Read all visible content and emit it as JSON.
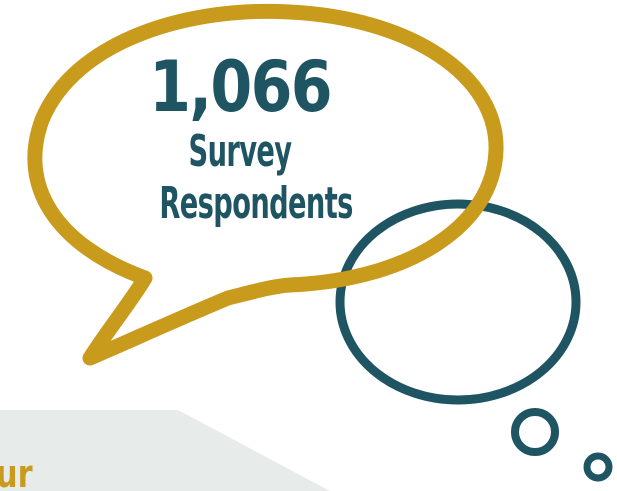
{
  "stat": {
    "count": "1,066",
    "label_line1": "Survey",
    "label_line2": "Respondents"
  },
  "fragment": {
    "text": "ur"
  },
  "colors": {
    "gold": "#c89b1c",
    "teal": "#1f5563",
    "panel": "#e7ebea"
  },
  "icons": {
    "speech_bubble": "speech-bubble-icon",
    "thought_bubble": "thought-bubble-icon"
  }
}
